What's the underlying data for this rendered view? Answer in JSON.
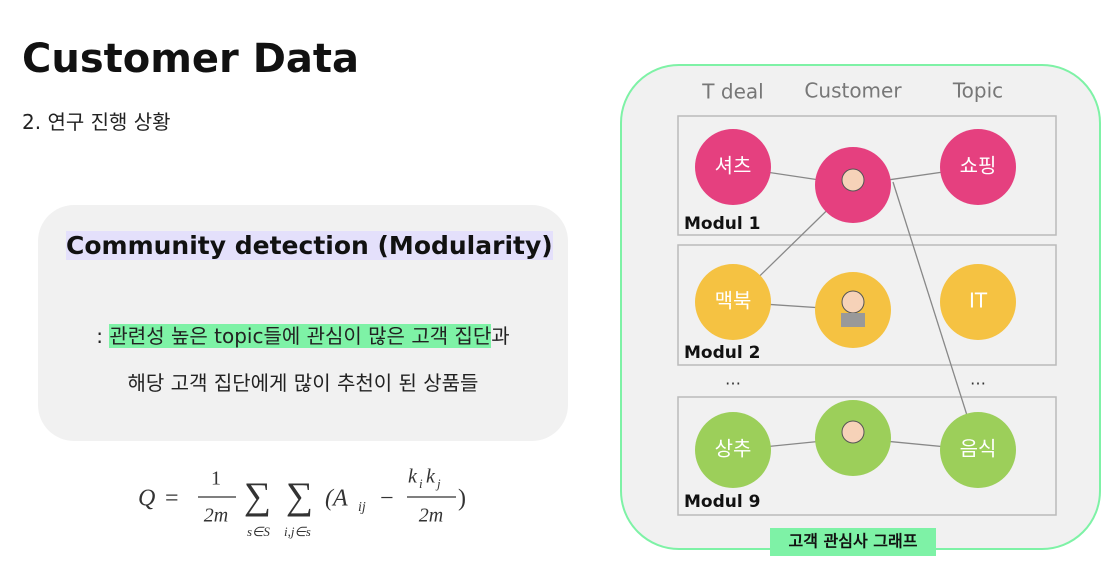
{
  "header": {
    "title": "Customer Data",
    "subtitle": "2. 연구 진행 상황"
  },
  "callout": {
    "heading": "Community detection (Modularity)",
    "line1_prefix": ": ",
    "line1_highlight": "관련성 높은 topic들에 관심이 많은 고객 집단",
    "line1_suffix": "과",
    "line2": "해당 고객 집단에게 많이 추천이 된 상품들"
  },
  "formula": {
    "lhs": "Q",
    "eq": "=",
    "frac1_num": "1",
    "frac1_den": "2m",
    "sum1": "∑",
    "sum1_sub": "s∈S",
    "sum2": "∑",
    "sum2_sub": "i,j∈s",
    "open": "(A",
    "a_sub": "ij",
    "minus": "−",
    "frac2_num": "k",
    "frac2_num_sub1": "i",
    "frac2_num_k2": "k",
    "frac2_num_sub2": "j",
    "frac2_den": "2m",
    "close": ")"
  },
  "graph": {
    "columns": [
      "T deal",
      "Customer",
      "Topic"
    ],
    "modules": [
      {
        "label": "Modul 1",
        "left": "셔츠",
        "right": "쇼핑"
      },
      {
        "label": "Modul 2",
        "left": "맥북",
        "right": "IT"
      },
      {
        "label": "Modul 9",
        "left": "상추",
        "right": "음식"
      }
    ],
    "ellipsis": [
      "…",
      "…"
    ],
    "caption": "고객 관심사 그래프"
  }
}
